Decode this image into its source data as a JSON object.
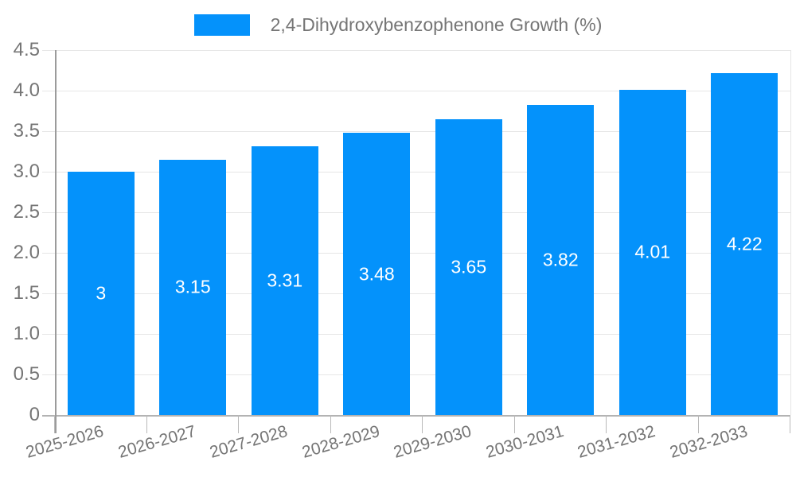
{
  "legend": {
    "label": "2,4-Dihydroxybenzophenone Growth (%)"
  },
  "colors": {
    "bar": "#0492FB",
    "value_label": "#FFFFFF",
    "text": "#757575",
    "grid": "#E6E6E6",
    "axis": "#9B9B9B",
    "zero_line": "#B3B3B3"
  },
  "chart_data": {
    "type": "bar",
    "title": "2,4-Dihydroxybenzophenone Growth (%)",
    "categories": [
      "2025-2026",
      "2026-2027",
      "2027-2028",
      "2028-2029",
      "2029-2030",
      "2030-2031",
      "2031-2032",
      "2032-2033"
    ],
    "values": [
      3,
      3.15,
      3.31,
      3.48,
      3.65,
      3.82,
      4.01,
      4.22
    ],
    "value_labels": [
      "3",
      "3.15",
      "3.31",
      "3.48",
      "3.65",
      "3.82",
      "4.01",
      "4.22"
    ],
    "xlabel": "",
    "ylabel": "",
    "ylim": [
      0,
      4.5
    ],
    "yticks": [
      0,
      0.5,
      1,
      1.5,
      2,
      2.5,
      3,
      3.5,
      4,
      4.5
    ],
    "ytick_labels": [
      "0",
      "0.5",
      "1.0",
      "1.5",
      "2.0",
      "2.5",
      "3.0",
      "3.5",
      "4.0",
      "4.5"
    ],
    "grid": true,
    "legend_position": "top",
    "bar_color": "#0492FB",
    "value_label_color": "#FFFFFF",
    "value_label_position": "inside-center"
  }
}
